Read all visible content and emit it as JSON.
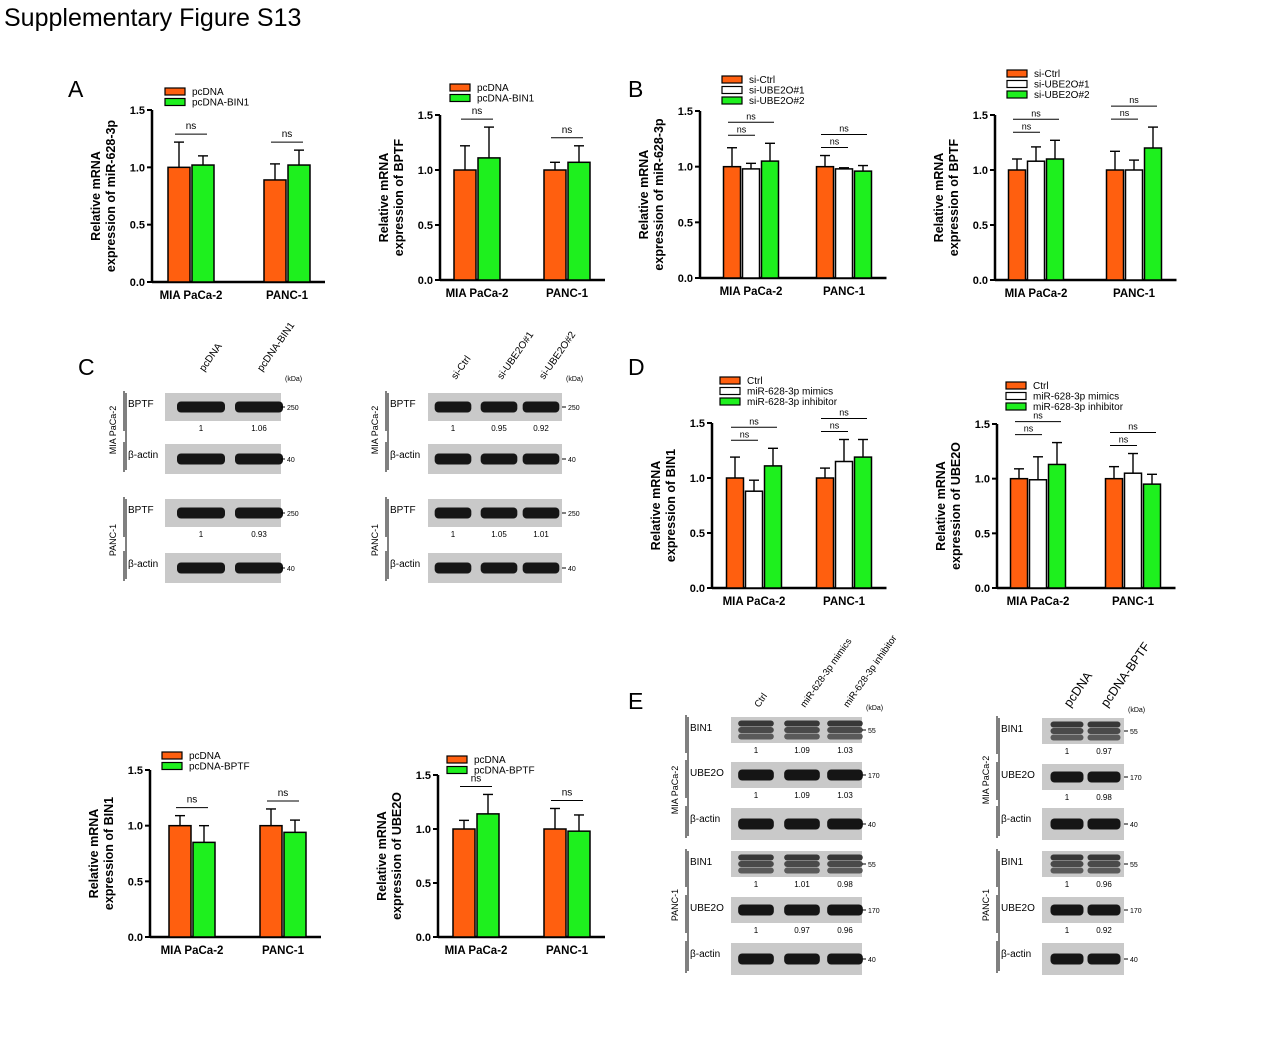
{
  "figure_title": "Supplementary Figure S13",
  "panel_letters": [
    "A",
    "B",
    "C",
    "D",
    "E"
  ],
  "colors": {
    "orange": "#FF5F0F",
    "green": "#1EF01E",
    "white": "#FFFFFF"
  },
  "common": {
    "ns": "ns",
    "groups": [
      "MIA PaCa-2",
      "PANC-1"
    ]
  },
  "chart_data": [
    {
      "id": "A1",
      "type": "bar",
      "ylabel": [
        "Relative mRNA",
        "expression of miR-628-3p"
      ],
      "ylim": [
        0,
        1.5
      ],
      "yticks": [
        "0.0",
        "0.5",
        "1.0",
        "1.5"
      ],
      "categories": [
        "MIA PaCa-2",
        "PANC-1"
      ],
      "series": [
        {
          "name": "pcDNA",
          "color": "#FF5F0F",
          "values": [
            1.0,
            0.89
          ],
          "err": [
            0.22,
            0.14
          ]
        },
        {
          "name": "pcDNA-BIN1",
          "color": "#1EF01E",
          "values": [
            1.02,
            1.02
          ],
          "err": [
            0.08,
            0.13
          ]
        }
      ],
      "ns": [
        {
          "text": "ns"
        },
        {
          "text": "ns"
        }
      ]
    },
    {
      "id": "A2",
      "type": "bar",
      "ylabel": [
        "Relative mRNA",
        "expression of BPTF"
      ],
      "ylim": [
        0,
        1.5
      ],
      "yticks": [
        "0.0",
        "0.5",
        "1.0",
        "1.5"
      ],
      "categories": [
        "MIA PaCa-2",
        "PANC-1"
      ],
      "series": [
        {
          "name": "pcDNA",
          "color": "#FF5F0F",
          "values": [
            1.0,
            1.0
          ],
          "err": [
            0.22,
            0.07
          ]
        },
        {
          "name": "pcDNA-BIN1",
          "color": "#1EF01E",
          "values": [
            1.11,
            1.07
          ],
          "err": [
            0.28,
            0.15
          ]
        }
      ],
      "ns": [
        {
          "text": "ns"
        },
        {
          "text": "ns"
        }
      ]
    },
    {
      "id": "B1",
      "type": "bar",
      "ylabel": [
        "Relative mRNA",
        "expression of miR-628-3p"
      ],
      "ylim": [
        0,
        1.5
      ],
      "yticks": [
        "0.0",
        "0.5",
        "1.0",
        "1.5"
      ],
      "categories": [
        "MIA PaCa-2",
        "PANC-1"
      ],
      "series": [
        {
          "name": "si-Ctrl",
          "color": "#FF5F0F",
          "values": [
            1.0,
            1.0
          ],
          "err": [
            0.17,
            0.1
          ]
        },
        {
          "name": "si-UBE2O#1",
          "color": "#FFFFFF",
          "values": [
            0.98,
            0.98
          ],
          "err": [
            0.05,
            0.01
          ]
        },
        {
          "name": "si-UBE2O#2",
          "color": "#1EF01E",
          "values": [
            1.05,
            0.96
          ],
          "err": [
            0.16,
            0.05
          ]
        }
      ],
      "ns": [
        {
          "text": "ns"
        },
        {
          "text": "ns"
        },
        {
          "text": "ns"
        },
        {
          "text": "ns"
        }
      ]
    },
    {
      "id": "B2",
      "type": "bar",
      "ylabel": [
        "Relative mRNA",
        "expression of BPTF"
      ],
      "ylim": [
        0,
        1.5
      ],
      "yticks": [
        "0.0",
        "0.5",
        "1.0",
        "1.5"
      ],
      "categories": [
        "MIA PaCa-2",
        "PANC-1"
      ],
      "series": [
        {
          "name": "si-Ctrl",
          "color": "#FF5F0F",
          "values": [
            1.0,
            1.0
          ],
          "err": [
            0.1,
            0.17
          ]
        },
        {
          "name": "si-UBE2O#1",
          "color": "#FFFFFF",
          "values": [
            1.08,
            1.0
          ],
          "err": [
            0.13,
            0.09
          ]
        },
        {
          "name": "si-UBE2O#2",
          "color": "#1EF01E",
          "values": [
            1.1,
            1.2
          ],
          "err": [
            0.17,
            0.19
          ]
        }
      ],
      "ns": [
        {
          "text": "ns"
        },
        {
          "text": "ns"
        },
        {
          "text": "ns"
        },
        {
          "text": "ns"
        }
      ]
    },
    {
      "id": "D1",
      "type": "bar",
      "ylabel": [
        "Relative mRNA",
        "expression of BIN1"
      ],
      "ylim": [
        0,
        1.5
      ],
      "yticks": [
        "0.0",
        "0.5",
        "1.0",
        "1.5"
      ],
      "categories": [
        "MIA PaCa-2",
        "PANC-1"
      ],
      "series": [
        {
          "name": "Ctrl",
          "color": "#FF5F0F",
          "values": [
            1.0,
            1.0
          ],
          "err": [
            0.19,
            0.09
          ]
        },
        {
          "name": "miR-628-3p mimics",
          "color": "#FFFFFF",
          "values": [
            0.88,
            1.15
          ],
          "err": [
            0.1,
            0.2
          ]
        },
        {
          "name": "miR-628-3p inhibitor",
          "color": "#1EF01E",
          "values": [
            1.11,
            1.19
          ],
          "err": [
            0.16,
            0.16
          ]
        }
      ],
      "ns": [
        {
          "text": "ns"
        },
        {
          "text": "ns"
        },
        {
          "text": "ns"
        },
        {
          "text": "ns"
        }
      ]
    },
    {
      "id": "D2",
      "type": "bar",
      "ylabel": [
        "Relative mRNA",
        "expression of UBE2O"
      ],
      "ylim": [
        0,
        1.5
      ],
      "yticks": [
        "0.0",
        "0.5",
        "1.0",
        "1.5"
      ],
      "categories": [
        "MIA PaCa-2",
        "PANC-1"
      ],
      "series": [
        {
          "name": "Ctrl",
          "color": "#FF5F0F",
          "values": [
            1.0,
            1.0
          ],
          "err": [
            0.09,
            0.11
          ]
        },
        {
          "name": "miR-628-3p mimics",
          "color": "#FFFFFF",
          "values": [
            0.99,
            1.05
          ],
          "err": [
            0.21,
            0.18
          ]
        },
        {
          "name": "miR-628-3p inhibitor",
          "color": "#1EF01E",
          "values": [
            1.13,
            0.95
          ],
          "err": [
            0.2,
            0.09
          ]
        }
      ],
      "ns": [
        {
          "text": "ns"
        },
        {
          "text": "ns"
        },
        {
          "text": "ns"
        },
        {
          "text": "ns"
        }
      ]
    },
    {
      "id": "F1",
      "type": "bar",
      "ylabel": [
        "Relative mRNA",
        "expression of BIN1"
      ],
      "ylim": [
        0,
        1.5
      ],
      "yticks": [
        "0.0",
        "0.5",
        "1.0",
        "1.5"
      ],
      "categories": [
        "MIA PaCa-2",
        "PANC-1"
      ],
      "series": [
        {
          "name": "pcDNA",
          "color": "#FF5F0F",
          "values": [
            1.0,
            1.0
          ],
          "err": [
            0.09,
            0.15
          ]
        },
        {
          "name": "pcDNA-BPTF",
          "color": "#1EF01E",
          "values": [
            0.85,
            0.94
          ],
          "err": [
            0.15,
            0.11
          ]
        }
      ],
      "ns": [
        {
          "text": "ns"
        },
        {
          "text": "ns"
        }
      ]
    },
    {
      "id": "F2",
      "type": "bar",
      "ylabel": [
        "Relative mRNA",
        "expression of UBE2O"
      ],
      "ylim": [
        0,
        1.5
      ],
      "yticks": [
        "0.0",
        "0.5",
        "1.0",
        "1.5"
      ],
      "categories": [
        "MIA PaCa-2",
        "PANC-1"
      ],
      "series": [
        {
          "name": "pcDNA",
          "color": "#FF5F0F",
          "values": [
            1.0,
            1.0
          ],
          "err": [
            0.08,
            0.19
          ]
        },
        {
          "name": "pcDNA-BPTF",
          "color": "#1EF01E",
          "values": [
            1.14,
            0.98
          ],
          "err": [
            0.18,
            0.15
          ]
        }
      ],
      "ns": [
        {
          "text": "ns"
        },
        {
          "text": "ns"
        }
      ]
    }
  ],
  "blots": [
    {
      "id": "C1",
      "cols": [
        "pcDNA",
        "pcDNA-BIN1"
      ],
      "kda": "(kDa)",
      "cells": [
        {
          "name": "MIA PaCa-2",
          "rows": [
            {
              "protein": "BPTF",
              "mw": "250",
              "values": [
                "1",
                "1.06"
              ]
            },
            {
              "protein": "β-actin",
              "mw": "40",
              "values": []
            }
          ]
        },
        {
          "name": "PANC-1",
          "rows": [
            {
              "protein": "BPTF",
              "mw": "250",
              "values": [
                "1",
                "0.93"
              ]
            },
            {
              "protein": "β-actin",
              "mw": "40",
              "values": []
            }
          ]
        }
      ]
    },
    {
      "id": "C2",
      "cols": [
        "si-Ctrl",
        "si-UBE2O#1",
        "si-UBE2O#2"
      ],
      "kda": "(kDa)",
      "cells": [
        {
          "name": "MIA PaCa-2",
          "rows": [
            {
              "protein": "BPTF",
              "mw": "250",
              "values": [
                "1",
                "0.95",
                "0.92"
              ]
            },
            {
              "protein": "β-actin",
              "mw": "40",
              "values": []
            }
          ]
        },
        {
          "name": "PANC-1",
          "rows": [
            {
              "protein": "BPTF",
              "mw": "250",
              "values": [
                "1",
                "1.05",
                "1.01"
              ]
            },
            {
              "protein": "β-actin",
              "mw": "40",
              "values": []
            }
          ]
        }
      ]
    },
    {
      "id": "E1",
      "cols": [
        "Ctrl",
        "miR-628-3p mimics",
        "miR-628-3p inhibitor"
      ],
      "kda": "(kDa)",
      "cells": [
        {
          "name": "MIA PaCa-2",
          "rows": [
            {
              "protein": "BIN1",
              "mw": "55",
              "values": [
                "1",
                "1.09",
                "1.03"
              ]
            },
            {
              "protein": "UBE2O",
              "mw": "170",
              "values": [
                "1",
                "1.09",
                "1.03"
              ]
            },
            {
              "protein": "β-actin",
              "mw": "40",
              "values": []
            }
          ]
        },
        {
          "name": "PANC-1",
          "rows": [
            {
              "protein": "BIN1",
              "mw": "55",
              "values": [
                "1",
                "1.01",
                "0.98"
              ]
            },
            {
              "protein": "UBE2O",
              "mw": "170",
              "values": [
                "1",
                "0.97",
                "0.96"
              ]
            },
            {
              "protein": "β-actin",
              "mw": "40",
              "values": []
            }
          ]
        }
      ]
    },
    {
      "id": "E2",
      "cols": [
        "pcDNA",
        "pcDNA-BPTF"
      ],
      "kda": "(kDa)",
      "cells": [
        {
          "name": "MIA PaCa-2",
          "rows": [
            {
              "protein": "BIN1",
              "mw": "55",
              "values": [
                "1",
                "0.97"
              ]
            },
            {
              "protein": "UBE2O",
              "mw": "170",
              "values": [
                "1",
                "0.98"
              ]
            },
            {
              "protein": "β-actin",
              "mw": "40",
              "values": []
            }
          ]
        },
        {
          "name": "PANC-1",
          "rows": [
            {
              "protein": "BIN1",
              "mw": "55",
              "values": [
                "1",
                "0.96"
              ]
            },
            {
              "protein": "UBE2O",
              "mw": "170",
              "values": [
                "1",
                "0.92"
              ]
            },
            {
              "protein": "β-actin",
              "mw": "40",
              "values": []
            }
          ]
        }
      ]
    }
  ]
}
